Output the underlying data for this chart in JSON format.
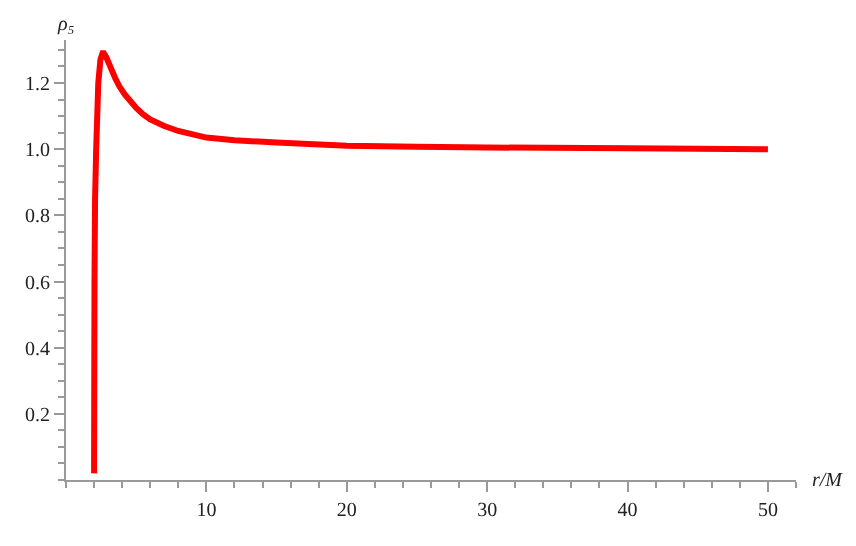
{
  "chart_data": {
    "type": "line",
    "ylabel": "ρ₅",
    "xlabel": "r/M",
    "x": [
      2.0,
      2.01,
      2.03,
      2.07,
      2.15,
      2.3,
      2.45,
      2.6,
      2.7,
      2.85,
      3.0,
      3.2,
      3.5,
      3.8,
      4.2,
      4.6,
      5.0,
      5.5,
      6.0,
      7.0,
      8.0,
      10.0,
      12.0,
      15.0,
      20.0,
      25.0,
      30.0,
      40.0,
      50.0
    ],
    "series": [
      {
        "color": "#ff0000",
        "values": [
          0.02,
          0.25,
          0.6,
          0.85,
          1.0,
          1.2,
          1.27,
          1.29,
          1.29,
          1.28,
          1.265,
          1.245,
          1.215,
          1.19,
          1.165,
          1.145,
          1.125,
          1.105,
          1.09,
          1.07,
          1.055,
          1.035,
          1.027,
          1.02,
          1.01,
          1.007,
          1.005,
          1.003,
          1.0
        ]
      }
    ],
    "xlim": [
      0,
      52
    ],
    "xticks": [
      10,
      20,
      30,
      40,
      50
    ],
    "ylim": [
      0,
      1.33
    ],
    "yticks": [
      0.2,
      0.4,
      0.6,
      0.8,
      {
        "value": 1,
        "label": "1.0"
      },
      1.2
    ],
    "marker": "none",
    "line_style": "solid"
  }
}
